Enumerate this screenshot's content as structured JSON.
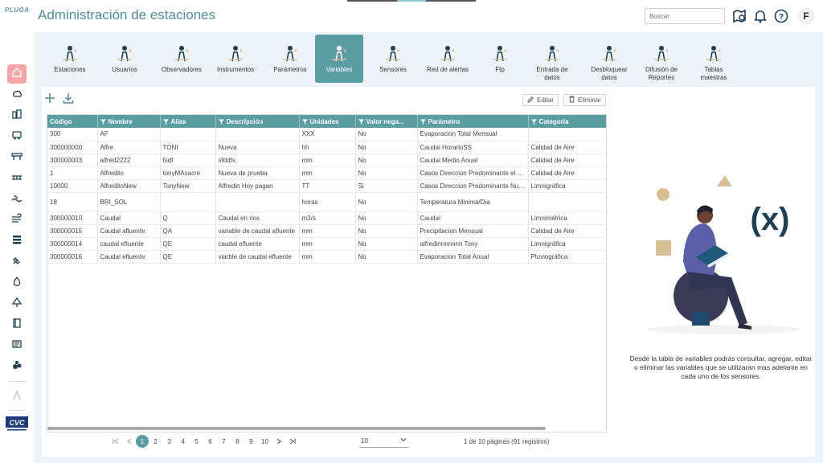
{
  "app": {
    "logo": "PLUGA",
    "title": "Administración de estaciones"
  },
  "header": {
    "search_placeholder": "Buscar",
    "avatar_letter": "F"
  },
  "sidebar": {
    "icons": [
      "home-icon",
      "weather-icon",
      "buildings-icon",
      "bus-icon",
      "platform-icon",
      "bridge-icon",
      "wave-icon",
      "wind-icon",
      "layers-icon",
      "satellite-icon",
      "drop-icon",
      "tree-icon",
      "book-icon",
      "news-icon",
      "cluster-icon"
    ],
    "footer_logo": "CVC"
  },
  "tabs": [
    {
      "label": "Estaciones",
      "icon": "station-icon"
    },
    {
      "label": "Usuarios",
      "icon": "users-icon"
    },
    {
      "label": "Observadores",
      "icon": "observer-icon"
    },
    {
      "label": "Instrumentos",
      "icon": "instrument-icon"
    },
    {
      "label": "Parámetros",
      "icon": "parameters-icon"
    },
    {
      "label": "Variables",
      "icon": "variables-icon",
      "active": true
    },
    {
      "label": "Sensores",
      "icon": "sensor-icon"
    },
    {
      "label": "Red de alertas",
      "icon": "alert-network-icon"
    },
    {
      "label": "Ftp",
      "icon": "ftp-icon"
    },
    {
      "label": "Entrada de\ndatos",
      "icon": "data-entry-icon"
    },
    {
      "label": "Desbloquear\ndatos",
      "icon": "unlock-icon"
    },
    {
      "label": "Difusión de\nReportes",
      "icon": "reports-icon"
    },
    {
      "label": "Tablas\nmaestras",
      "icon": "tables-icon"
    }
  ],
  "toolbar": {
    "edit_label": "Editar",
    "delete_label": "Eliminar"
  },
  "table": {
    "columns": [
      "Código",
      "Nombre",
      "Alias",
      "Descripción",
      "Unidades",
      "Valor nega...",
      "Parámetro",
      "Categoría"
    ],
    "rows": [
      [
        "300",
        "AF",
        "",
        "",
        "XXX",
        "No",
        "Evaporacion Total Mensual",
        ""
      ],
      [
        "300000000",
        "Alfre",
        "TONI",
        "Nueva",
        "hh",
        "No",
        "Caudal HorarioSS",
        "Calidad de Aire"
      ],
      [
        "300000003",
        "alfred2222",
        "fsdf",
        "sfddfs",
        "mm",
        "No",
        "Caudal Medio Anual",
        "Calidad de Aire"
      ],
      [
        "1",
        "Alfredito",
        "tonyMAsacre",
        "Nueva de prueba",
        "mm",
        "No",
        "Casos Direccion Predominante el va...",
        "Calidad de Aire"
      ],
      [
        "10000",
        "AlfreditoNew",
        "TonyNew",
        "Alfredin Hoy pagan",
        "TT",
        "Si",
        "Casos Direccion Predominante Nueva",
        "Limnigráfica"
      ],
      [
        "18",
        "BRI_SOL",
        "",
        "",
        "horas",
        "No",
        "Temperatura Minima/Dia",
        ""
      ],
      [
        "300000010",
        "Caudal",
        "Q",
        "Caudal en rios",
        "m3/s",
        "No",
        "Caudal",
        "Limnimétrica"
      ],
      [
        "300000015",
        "Caudal afluente",
        "QA",
        "variable de caudal afluente",
        "mm",
        "No",
        "Precipitacion Mensual",
        "Calidad de Aire"
      ],
      [
        "300000014",
        "caudal efluente",
        "QE",
        "caudal efluente",
        "mm",
        "No",
        "alfredinnnnnnn Tony",
        "Limnigráfica"
      ],
      [
        "300000016",
        "Caudal efluente",
        "QE",
        "viarble de caudal efluente",
        "mm",
        "No",
        "Evaporacion Total Anual",
        "Pluviográfica"
      ]
    ]
  },
  "pagination": {
    "pages": [
      "1",
      "2",
      "3",
      "4",
      "5",
      "6",
      "7",
      "8",
      "9",
      "10"
    ],
    "current": "1",
    "page_size": "10",
    "info": "1 de 10 páginas (91 registros)"
  },
  "side_panel": {
    "description": "Desde la tabla de variables podrás consultar, agregar, editar o eliminar las variables que se utilizaran mas adelante en cada uno de los sensores.",
    "illustration_symbol": "(x)"
  },
  "colors": {
    "accent": "#5a9ea3",
    "title": "#4f8f95",
    "sidebar_active": "#f4a6a6"
  }
}
